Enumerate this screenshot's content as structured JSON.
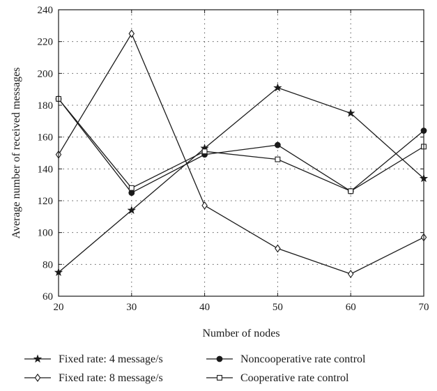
{
  "chart_data": {
    "type": "line",
    "xlabel": "Number of nodes",
    "ylabel": "Average number of received messages",
    "x": [
      20,
      30,
      40,
      50,
      60,
      70
    ],
    "xlim": [
      20,
      70
    ],
    "ylim": [
      60,
      240
    ],
    "xticks": [
      20,
      30,
      40,
      50,
      60,
      70
    ],
    "yticks": [
      60,
      80,
      100,
      120,
      140,
      160,
      180,
      200,
      220,
      240
    ],
    "grid": true,
    "legend_position": "bottom",
    "series": [
      {
        "name": "Fixed rate: 4 message/s",
        "marker": "star",
        "values": [
          75,
          114,
          153,
          191,
          175,
          134
        ]
      },
      {
        "name": "Fixed rate: 8 message/s",
        "marker": "diamond",
        "values": [
          149,
          225,
          117,
          90,
          74,
          97
        ]
      },
      {
        "name": "Noncooperative rate control",
        "marker": "circle",
        "values": [
          184,
          125,
          149,
          155,
          126,
          164
        ]
      },
      {
        "name": "Cooperative rate control",
        "marker": "square",
        "values": [
          184,
          128,
          151,
          146,
          126,
          154
        ]
      }
    ]
  }
}
